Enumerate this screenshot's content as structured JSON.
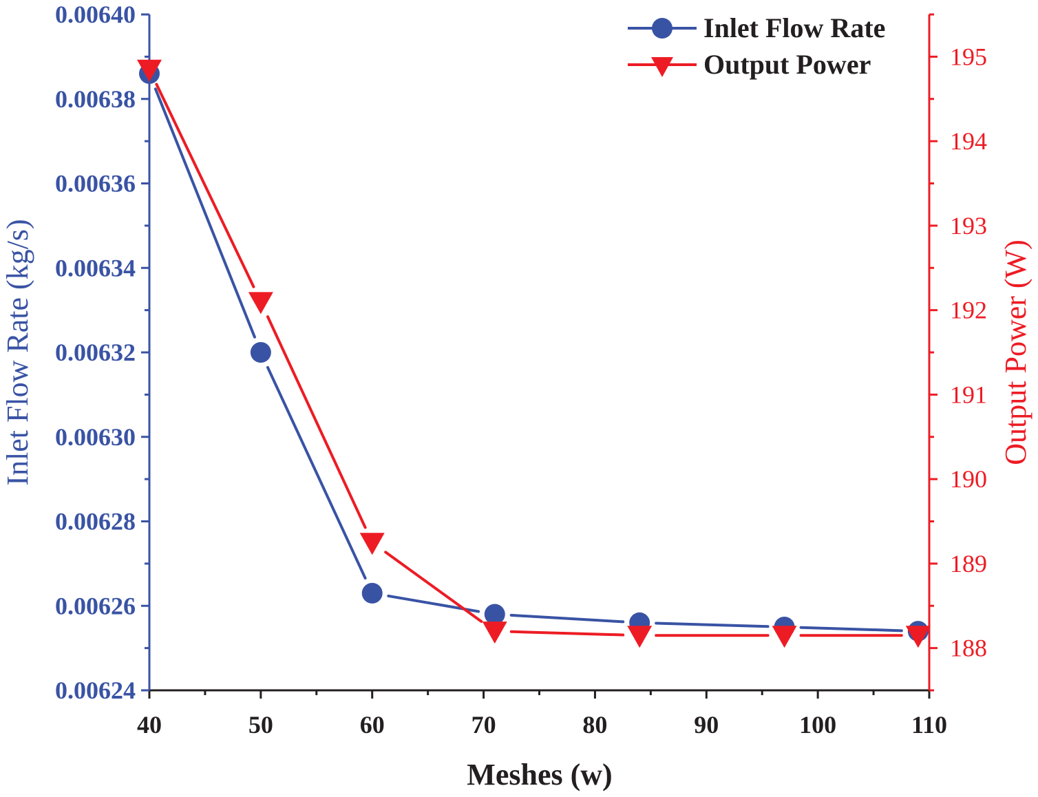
{
  "chart_data": {
    "type": "line",
    "x": [
      40,
      50,
      60,
      71,
      84,
      97,
      109
    ],
    "xlabel": "Meshes (w)",
    "xlim": [
      40,
      110
    ],
    "xticks": [
      40,
      50,
      60,
      70,
      80,
      90,
      100,
      110
    ],
    "xtick_labels": [
      "40",
      "50",
      "60",
      "70",
      "80",
      "90",
      "100",
      "110"
    ],
    "series": [
      {
        "name": "Inlet Flow Rate",
        "axis": "left",
        "marker": "circle",
        "color": "#3953a4",
        "values": [
          0.006386,
          0.00632,
          0.006263,
          0.006258,
          0.006256,
          0.006255,
          0.006254
        ]
      },
      {
        "name": "Output Power",
        "axis": "right",
        "marker": "triangle-down",
        "color": "#ed1c24",
        "values": [
          194.85,
          192.1,
          189.25,
          188.2,
          188.15,
          188.15,
          188.15
        ]
      }
    ],
    "left_axis": {
      "label": "Inlet Flow Rate (kg/s)",
      "ylim": [
        0.00624,
        0.0064
      ],
      "ticks": [
        0.00624,
        0.00626,
        0.00628,
        0.0063,
        0.00632,
        0.00634,
        0.00636,
        0.00638,
        0.0064
      ],
      "tick_labels": [
        "0.00624",
        "0.00626",
        "0.00628",
        "0.00630",
        "0.00632",
        "0.00634",
        "0.00636",
        "0.00638",
        "0.00640"
      ],
      "color": "#3953a4"
    },
    "right_axis": {
      "label": "Output Power (W)",
      "ylim": [
        187.5,
        195.5
      ],
      "ticks": [
        188,
        189,
        190,
        191,
        192,
        193,
        194,
        195
      ],
      "tick_labels": [
        "188",
        "189",
        "190",
        "191",
        "192",
        "193",
        "194",
        "195"
      ],
      "color": "#ed1c24"
    },
    "legend": {
      "position": "top-right",
      "entries": [
        "Inlet Flow Rate",
        "Output Power"
      ]
    },
    "grid": false
  }
}
